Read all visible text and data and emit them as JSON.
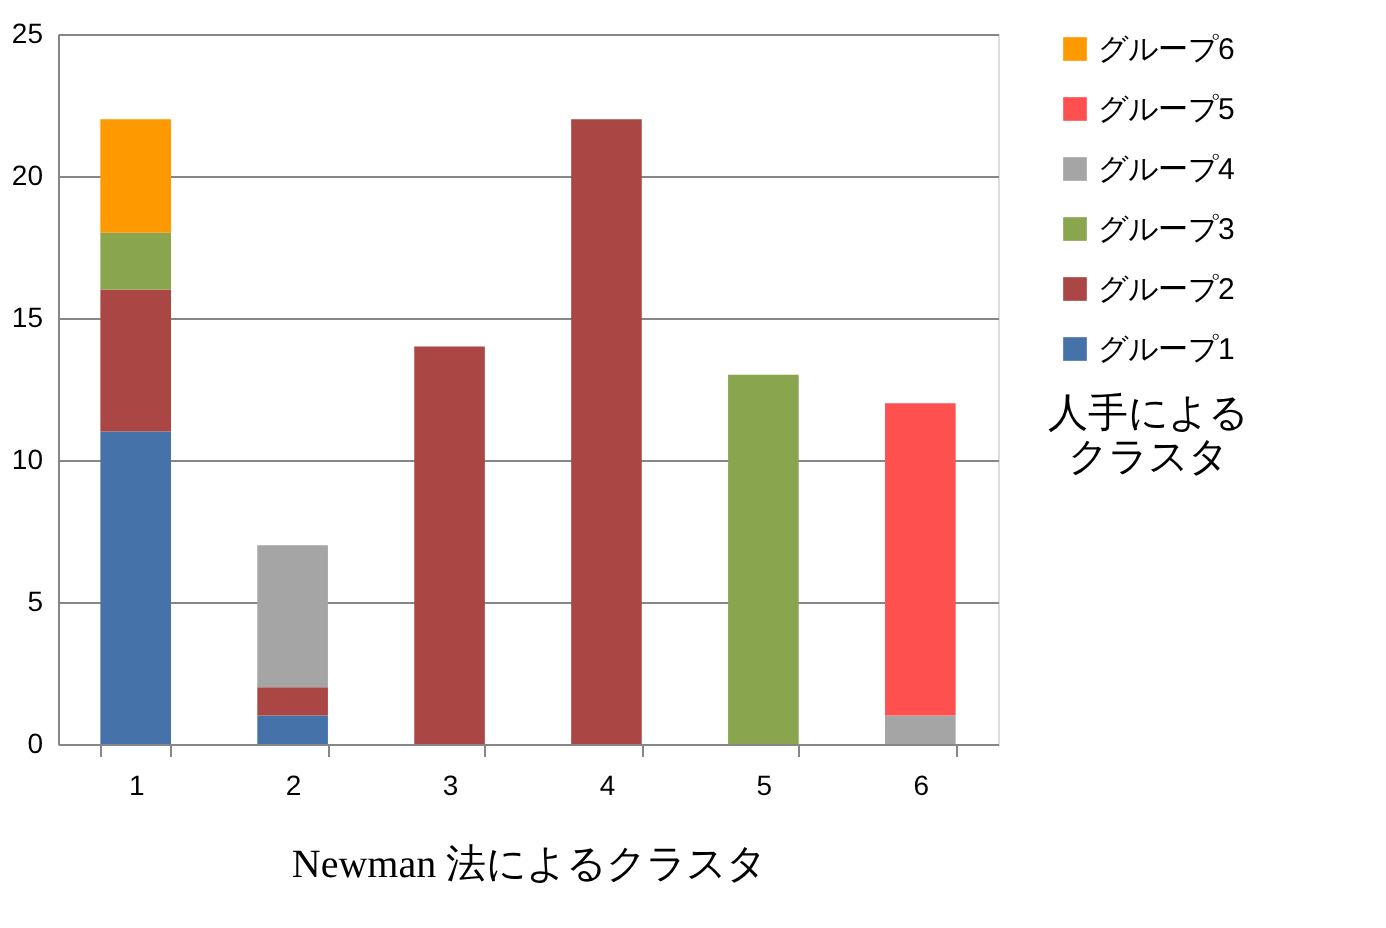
{
  "chart_data": {
    "type": "bar",
    "stacked": true,
    "xlabel": "Newman 法によるクラスタ",
    "legend_title": "人手によるクラスタ",
    "categories": [
      "1",
      "2",
      "3",
      "4",
      "5",
      "6"
    ],
    "series": [
      {
        "name": "グループ1",
        "color": "#4672aa",
        "values": [
          11,
          1,
          0,
          0,
          0,
          0
        ]
      },
      {
        "name": "グループ2",
        "color": "#aa4643",
        "values": [
          5,
          1,
          14,
          22,
          0,
          0
        ]
      },
      {
        "name": "グループ3",
        "color": "#89a54e",
        "values": [
          2,
          0,
          0,
          0,
          13,
          0
        ]
      },
      {
        "name": "グループ4",
        "color": "#a5a5a5",
        "values": [
          0,
          5,
          0,
          0,
          0,
          1
        ]
      },
      {
        "name": "グループ5",
        "color": "#ff5050",
        "values": [
          0,
          0,
          0,
          0,
          0,
          11
        ]
      },
      {
        "name": "グループ6",
        "color": "#ff9900",
        "values": [
          4,
          0,
          0,
          0,
          0,
          0
        ]
      }
    ],
    "ylim": [
      0,
      25
    ],
    "yticks": [
      0,
      5,
      10,
      15,
      20,
      25
    ],
    "grid": "y",
    "legend": "right"
  }
}
